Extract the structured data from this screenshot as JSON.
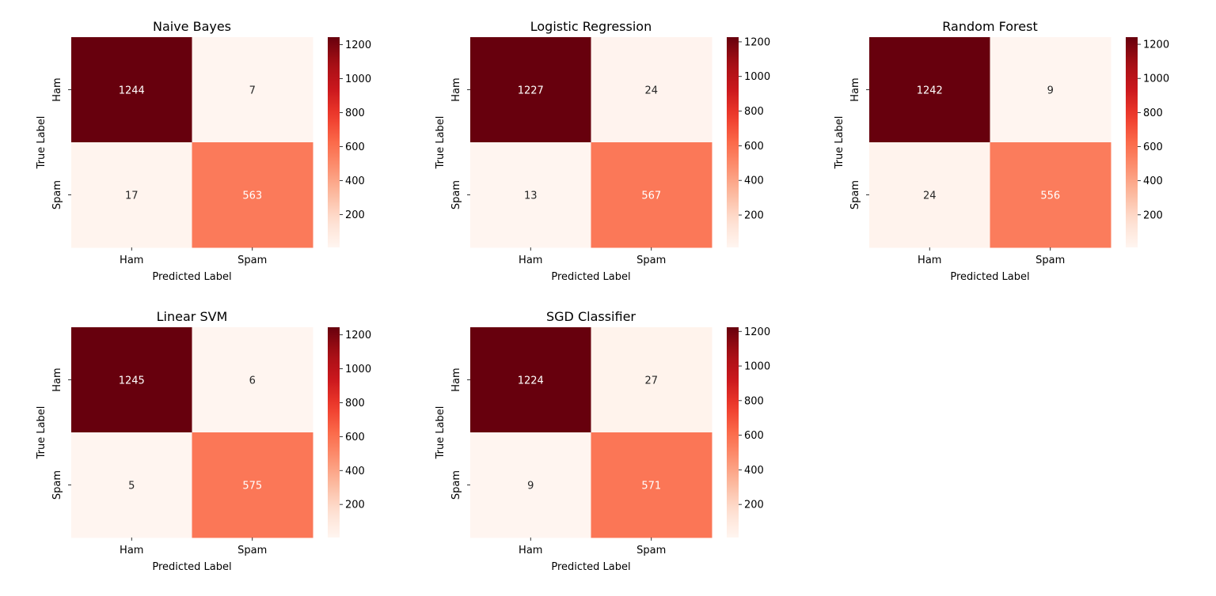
{
  "chart_data": [
    {
      "type": "heatmap",
      "title": "Naive Bayes",
      "xlabel": "Predicted Label",
      "ylabel": "True Label",
      "x_categories": [
        "Ham",
        "Spam"
      ],
      "y_categories": [
        "Ham",
        "Spam"
      ],
      "values": [
        [
          1244,
          7
        ],
        [
          17,
          563
        ]
      ],
      "colormap": "Reds",
      "colorbar_ticks": [
        "200",
        "400",
        "600",
        "800",
        "1000",
        "1200"
      ]
    },
    {
      "type": "heatmap",
      "title": "Logistic Regression",
      "xlabel": "Predicted Label",
      "ylabel": "True Label",
      "x_categories": [
        "Ham",
        "Spam"
      ],
      "y_categories": [
        "Ham",
        "Spam"
      ],
      "values": [
        [
          1227,
          24
        ],
        [
          13,
          567
        ]
      ],
      "colormap": "Reds",
      "colorbar_ticks": [
        "200",
        "400",
        "600",
        "800",
        "1000",
        "1200"
      ]
    },
    {
      "type": "heatmap",
      "title": "Random Forest",
      "xlabel": "Predicted Label",
      "ylabel": "True Label",
      "x_categories": [
        "Ham",
        "Spam"
      ],
      "y_categories": [
        "Ham",
        "Spam"
      ],
      "values": [
        [
          1242,
          9
        ],
        [
          24,
          556
        ]
      ],
      "colormap": "Reds",
      "colorbar_ticks": [
        "200",
        "400",
        "600",
        "800",
        "1000",
        "1200"
      ]
    },
    {
      "type": "heatmap",
      "title": "Linear SVM",
      "xlabel": "Predicted Label",
      "ylabel": "True Label",
      "x_categories": [
        "Ham",
        "Spam"
      ],
      "y_categories": [
        "Ham",
        "Spam"
      ],
      "values": [
        [
          1245,
          6
        ],
        [
          5,
          575
        ]
      ],
      "colormap": "Reds",
      "colorbar_ticks": [
        "200",
        "400",
        "600",
        "800",
        "1000",
        "1200"
      ]
    },
    {
      "type": "heatmap",
      "title": "SGD Classifier",
      "xlabel": "Predicted Label",
      "ylabel": "True Label",
      "x_categories": [
        "Ham",
        "Spam"
      ],
      "y_categories": [
        "Ham",
        "Spam"
      ],
      "values": [
        [
          1224,
          27
        ],
        [
          9,
          571
        ]
      ],
      "colormap": "Reds",
      "colorbar_ticks": [
        "200",
        "400",
        "600",
        "800",
        "1000",
        "1200"
      ]
    }
  ]
}
